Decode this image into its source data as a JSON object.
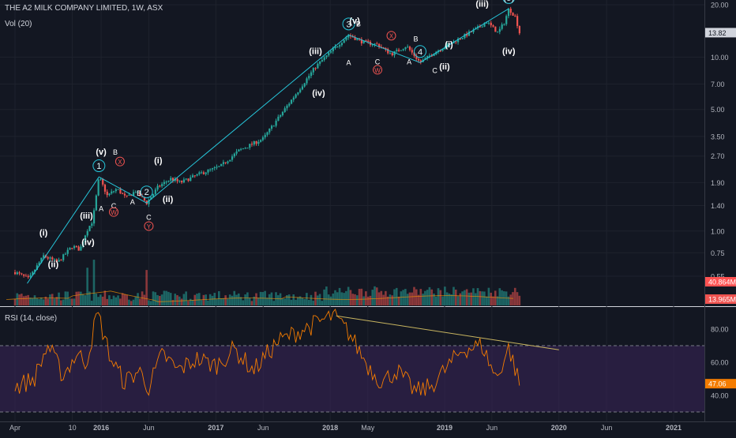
{
  "header": {
    "symbol_line": "THE A2 MILK COMPANY LIMITED, 1W, ASX",
    "volume_indicator": "Vol (20)",
    "rsi_indicator": "RSI (14, close)"
  },
  "price_axis": {
    "ticks": [
      "20.00",
      "10.00",
      "7.00",
      "5.00",
      "3.50",
      "2.70",
      "1.90",
      "1.40",
      "1.00",
      "0.75",
      "0.55"
    ],
    "last_price": "13.82",
    "volume_ma_badge": "40.864M",
    "volume_badge": "13.965M"
  },
  "rsi_axis": {
    "ticks": [
      "80.00",
      "60.00",
      "40.00"
    ],
    "value_badge": "47.06"
  },
  "time_axis": {
    "labels": [
      "Apr",
      "10",
      "2016",
      "Jun",
      "2017",
      "Jun",
      "2018",
      "May",
      "2019",
      "Jun",
      "2020",
      "Jun",
      "2021"
    ]
  },
  "colors": {
    "background": "#131722",
    "up": "#26a69a",
    "down": "#ef5350",
    "box_green": "#1b5e20",
    "box_red": "#5b1a1f",
    "wave_line": "#26c6da",
    "rsi_line": "#f57c00",
    "rsi_band": "#3b2459",
    "target_box": "#827717"
  },
  "chart_data": {
    "type": "candlestick",
    "title": "THE A2 MILK COMPANY LIMITED, 1W, ASX",
    "yscale": "log",
    "ylim": [
      0.5,
      20
    ],
    "price_path": [
      [
        "2015-04-01",
        0.58
      ],
      [
        "2015-05-15",
        0.53
      ],
      [
        "2015-07-01",
        0.72
      ],
      [
        "2015-08-15",
        0.66
      ],
      [
        "2015-10-01",
        0.82
      ],
      [
        "2015-10-25",
        0.78
      ],
      [
        "2015-11-15",
        1.0
      ],
      [
        "2015-12-05",
        1.15
      ],
      [
        "2015-12-25",
        2.05
      ],
      [
        "2016-01-20",
        1.6
      ],
      [
        "2016-02-20",
        1.75
      ],
      [
        "2016-03-20",
        1.55
      ],
      [
        "2016-04-20",
        1.7
      ],
      [
        "2016-05-25",
        1.45
      ],
      [
        "2016-07-01",
        1.8
      ],
      [
        "2016-08-10",
        2.0
      ],
      [
        "2016-09-10",
        1.9
      ],
      [
        "2016-11-15",
        2.15
      ],
      [
        "2017-01-15",
        2.35
      ],
      [
        "2017-03-15",
        2.9
      ],
      [
        "2017-06-01",
        3.4
      ],
      [
        "2017-08-15",
        5.2
      ],
      [
        "2017-11-15",
        8.8
      ],
      [
        "2018-01-20",
        11.5
      ],
      [
        "2018-03-01",
        13.4
      ],
      [
        "2018-04-15",
        12.2
      ],
      [
        "2018-06-01",
        11.8
      ],
      [
        "2018-07-15",
        10.4
      ],
      [
        "2018-09-01",
        11.6
      ],
      [
        "2018-10-15",
        9.3
      ],
      [
        "2018-12-01",
        10.7
      ],
      [
        "2019-02-01",
        12.3
      ],
      [
        "2019-04-15",
        14.6
      ],
      [
        "2019-05-15",
        16.0
      ],
      [
        "2019-06-20",
        13.8
      ],
      [
        "2019-07-10",
        15.8
      ],
      [
        "2019-07-25",
        19.0
      ],
      [
        "2019-08-15",
        17.0
      ],
      [
        "2019-08-28",
        13.82
      ]
    ],
    "volume_ma_last": "40.864M",
    "volume_last": "13.965M",
    "rsi": {
      "label": "RSI (14, close)",
      "levels": [
        70,
        30
      ],
      "last": 47.06,
      "path": [
        [
          "2015-04-01",
          45
        ],
        [
          "2015-06-01",
          50
        ],
        [
          "2015-07-15",
          70
        ],
        [
          "2015-09-01",
          52
        ],
        [
          "2015-10-15",
          65
        ],
        [
          "2015-11-15",
          60
        ],
        [
          "2015-12-20",
          90
        ],
        [
          "2016-02-01",
          62
        ],
        [
          "2016-03-15",
          48
        ],
        [
          "2016-05-01",
          55
        ],
        [
          "2016-06-01",
          45
        ],
        [
          "2016-07-15",
          65
        ],
        [
          "2016-09-01",
          55
        ],
        [
          "2016-11-01",
          62
        ],
        [
          "2017-01-01",
          58
        ],
        [
          "2017-03-01",
          68
        ],
        [
          "2017-05-01",
          55
        ],
        [
          "2017-07-15",
          72
        ],
        [
          "2017-09-15",
          78
        ],
        [
          "2017-11-01",
          82
        ],
        [
          "2018-01-10",
          88
        ],
        [
          "2018-03-01",
          78
        ],
        [
          "2018-05-01",
          58
        ],
        [
          "2018-06-15",
          48
        ],
        [
          "2018-08-01",
          55
        ],
        [
          "2018-10-01",
          42
        ],
        [
          "2018-11-15",
          45
        ],
        [
          "2019-01-01",
          55
        ],
        [
          "2019-03-01",
          68
        ],
        [
          "2019-05-01",
          70
        ],
        [
          "2019-06-15",
          50
        ],
        [
          "2019-07-25",
          69
        ],
        [
          "2019-08-28",
          47.06
        ]
      ],
      "divergence_line": [
        [
          "2018-01-20",
          88
        ],
        [
          "2020-01-01",
          67.5
        ]
      ]
    },
    "elliott_waves": {
      "primary": [
        {
          "label": "1",
          "date": "2015-12-25",
          "price": 2.05
        },
        {
          "label": "2",
          "date": "2016-05-25",
          "price": 1.45
        },
        {
          "label": "3",
          "date": "2018-03-01",
          "price": 13.4
        },
        {
          "label": "4",
          "date": "2018-10-15",
          "price": 9.3
        },
        {
          "label": "(5)",
          "date": "2019-07-25",
          "price": 19.0
        }
      ],
      "labels": [
        {
          "text": "(i)",
          "date": "2015-07-01",
          "price": 0.94
        },
        {
          "text": "(ii)",
          "date": "2015-08-01",
          "price": 0.62
        },
        {
          "text": "(iii)",
          "date": "2015-11-15",
          "price": 1.18
        },
        {
          "text": "(iv)",
          "date": "2015-11-20",
          "price": 0.83
        },
        {
          "text": "(v)",
          "date": "2016-01-01",
          "price": 2.75
        },
        {
          "text": "B",
          "date": "2016-02-15",
          "price": 2.75
        },
        {
          "text": "A",
          "date": "2016-01-01",
          "price": 1.3
        },
        {
          "text": "C",
          "date": "2016-02-10",
          "price": 1.35
        },
        {
          "text": "A",
          "date": "2016-04-10",
          "price": 1.42
        },
        {
          "text": "B",
          "date": "2016-05-01",
          "price": 1.6
        },
        {
          "text": "C",
          "date": "2016-06-01",
          "price": 1.16
        },
        {
          "text": "W",
          "date": "2016-02-10",
          "price": 1.24
        },
        {
          "text": "X",
          "date": "2016-03-01",
          "price": 2.42
        },
        {
          "text": "Y",
          "date": "2016-06-01",
          "price": 1.03
        },
        {
          "text": "(i)",
          "date": "2016-07-01",
          "price": 2.45
        },
        {
          "text": "(ii)",
          "date": "2016-08-01",
          "price": 1.47
        },
        {
          "text": "(iii)",
          "date": "2017-11-15",
          "price": 10.4
        },
        {
          "text": "(iv)",
          "date": "2017-11-25",
          "price": 6.0
        },
        {
          "text": "(v)",
          "date": "2018-03-20",
          "price": 15.6
        },
        {
          "text": "B",
          "date": "2018-04-01",
          "price": 15.0
        },
        {
          "text": "A",
          "date": "2018-03-01",
          "price": 9.0
        },
        {
          "text": "C",
          "date": "2018-06-01",
          "price": 9.1
        },
        {
          "text": "W",
          "date": "2018-06-01",
          "price": 8.15
        },
        {
          "text": "X",
          "date": "2018-07-15",
          "price": 12.8
        },
        {
          "text": "A",
          "date": "2018-09-10",
          "price": 9.1
        },
        {
          "text": "B",
          "date": "2018-10-01",
          "price": 12.3
        },
        {
          "text": "C",
          "date": "2018-12-01",
          "price": 8.1
        },
        {
          "text": "(i)",
          "date": "2019-01-15",
          "price": 11.4
        },
        {
          "text": "(ii)",
          "date": "2019-01-01",
          "price": 8.5
        },
        {
          "text": "(iii)",
          "date": "2019-05-01",
          "price": 19.5
        },
        {
          "text": "(iv)",
          "date": "2019-07-25",
          "price": 10.4
        }
      ],
      "boxes": [
        {
          "type": "impulse",
          "x0": "2015-04-10",
          "x1": "2015-12-25",
          "y0": 0.5,
          "y1": 2.3
        },
        {
          "type": "correction",
          "x0": "2015-12-25",
          "x1": "2016-06-05",
          "y0": 1.25,
          "y1": 2.3
        },
        {
          "type": "impulse",
          "x0": "2016-06-05",
          "x1": "2018-03-01",
          "y0": 1.33,
          "y1": 13.82
        },
        {
          "type": "correction",
          "x0": "2018-03-01",
          "x1": "2018-11-01",
          "y0": 8.7,
          "y1": 13.82
        },
        {
          "type": "impulse",
          "x0": "2018-11-01",
          "x1": "2019-08-01",
          "y0": 8.7,
          "y1": 19.0
        }
      ],
      "target_zone": {
        "x0": "2019-08-01",
        "x1": "2020-10-15",
        "y0": 6.65,
        "y1": 7.5
      }
    }
  }
}
